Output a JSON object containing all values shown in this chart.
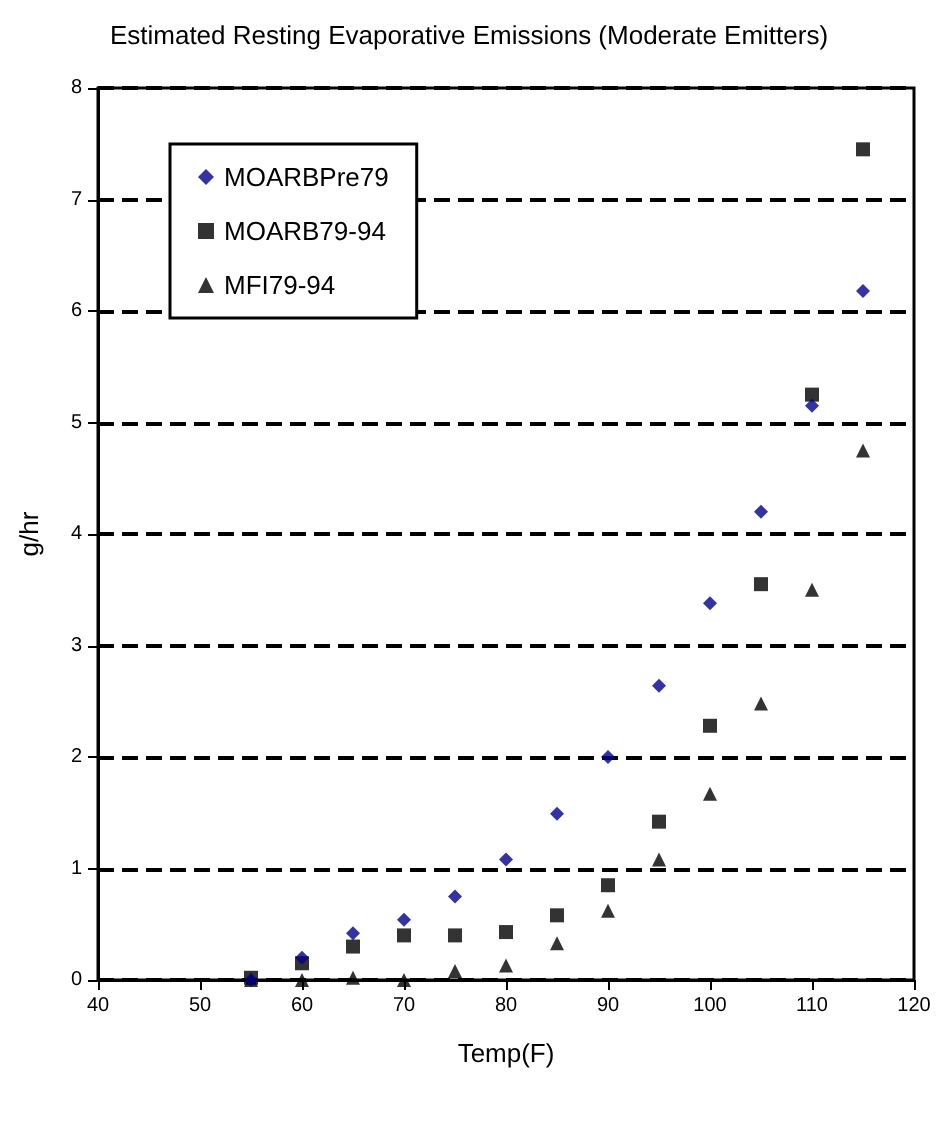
{
  "chart_data": {
    "type": "scatter",
    "title": "Estimated Resting Evaporative Emissions (Moderate Emitters)",
    "xlabel": "Temp(F)",
    "ylabel": "g/hr",
    "x": [
      55,
      60,
      65,
      70,
      75,
      80,
      85,
      90,
      95,
      100,
      105,
      110,
      115
    ],
    "series": [
      {
        "name": "MOARBPre79",
        "color": "#00008b",
        "marker": "diamond",
        "values": [
          0,
          0.2,
          0.42,
          0.54,
          0.75,
          1.08,
          1.49,
          2.0,
          2.64,
          3.38,
          4.2,
          5.15,
          6.18
        ]
      },
      {
        "name": "MOARB79-94",
        "color": "#000000",
        "marker": "square",
        "values": [
          0.02,
          0.15,
          0.3,
          0.4,
          0.4,
          0.43,
          0.58,
          0.85,
          1.42,
          2.28,
          3.55,
          5.25,
          7.45
        ]
      },
      {
        "name": "MFI79-94",
        "color": "#000000",
        "marker": "triangle",
        "values": [
          0,
          0,
          0.02,
          0,
          0.08,
          0.13,
          0.33,
          0.62,
          1.08,
          1.67,
          2.48,
          3.5,
          4.75
        ]
      }
    ],
    "xlim": [
      40,
      120
    ],
    "xticks": [
      40,
      50,
      60,
      70,
      80,
      90,
      100,
      110,
      120
    ],
    "ylim": [
      0,
      8
    ],
    "yticks": [
      0,
      1,
      2,
      3,
      4,
      5,
      6,
      7,
      8
    ],
    "grid": "y",
    "line_style": "dashed",
    "legend": "top left"
  }
}
